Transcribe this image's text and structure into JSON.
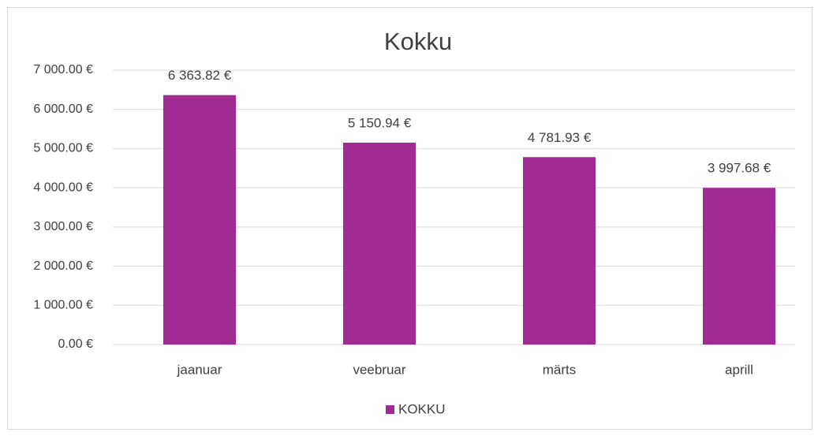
{
  "chart_data": {
    "type": "bar",
    "title": "Kokku",
    "categories": [
      "jaanuar",
      "veebruar",
      "märts",
      "aprill"
    ],
    "series": [
      {
        "name": "KOKKU",
        "color": "#a02b93",
        "values": [
          6363.82,
          5150.94,
          4781.93,
          3997.68
        ],
        "value_labels": [
          "6 363.82 €",
          "5 150.94 €",
          "4 781.93 €",
          "3 997.68 €"
        ]
      }
    ],
    "ylim": [
      0,
      7000
    ],
    "yticks": [
      {
        "value": 0,
        "label": "0.00 €"
      },
      {
        "value": 1000,
        "label": "1 000.00 €"
      },
      {
        "value": 2000,
        "label": "2 000.00 €"
      },
      {
        "value": 3000,
        "label": "3 000.00 €"
      },
      {
        "value": 4000,
        "label": "4 000.00 €"
      },
      {
        "value": 5000,
        "label": "5 000.00 €"
      },
      {
        "value": 6000,
        "label": "6 000.00 €"
      },
      {
        "value": 7000,
        "label": "7 000.00 €"
      }
    ],
    "grid": true,
    "legend": "bottom"
  }
}
